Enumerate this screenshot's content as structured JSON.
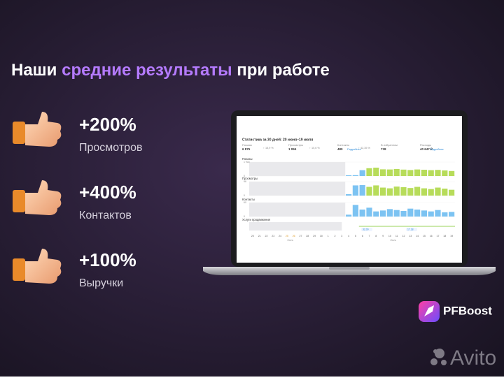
{
  "header": {
    "title_parts": [
      {
        "text": "Наши ",
        "accent": false
      },
      {
        "text": "средние результаты",
        "accent": true
      },
      {
        "text": " при работе",
        "accent": false
      }
    ]
  },
  "stats": [
    {
      "value": "+200%",
      "label": "Просмотров"
    },
    {
      "value": "+400%",
      "label": "Контактов"
    },
    {
      "value": "+100%",
      "label": "Выручки"
    }
  ],
  "screen": {
    "title": "Статистика за 30 дней: 20 июня–19 июля",
    "summary": [
      {
        "label": "Показы",
        "value": "6 875",
        "change": "↑ 15,9 %"
      },
      {
        "label": "Просмотры",
        "value": "1 094",
        "change": "↑ 10,6 %"
      },
      {
        "label": "Контакты",
        "value": "480",
        "change": "↑ 42,35 %",
        "link": "Подробнее"
      },
      {
        "label": "В избранном",
        "value": "738"
      },
      {
        "label": "Расходы",
        "value": "40 647 ₽",
        "link": "Подробнее"
      }
    ],
    "charts": [
      {
        "title": "Показы",
        "ylim": [
          0,
          1000
        ],
        "yticks": [
          {
            "value": 1000,
            "label": "1 тыс"
          },
          0
        ],
        "series": [
          {
            "color": "#7cc3f2",
            "values": [
              null,
              null,
              null,
              null,
              null,
              null,
              null,
              null,
              null,
              null,
              null,
              null,
              null,
              null,
              50,
              60,
              420,
              null,
              null,
              null,
              null,
              null,
              null,
              null,
              null,
              null,
              null,
              null,
              null,
              null
            ]
          },
          {
            "color": "#b7dc5a",
            "values": [
              null,
              null,
              null,
              null,
              null,
              null,
              null,
              null,
              null,
              null,
              null,
              null,
              null,
              null,
              null,
              null,
              null,
              560,
              600,
              480,
              470,
              500,
              460,
              430,
              470,
              450,
              420,
              440,
              400,
              360
            ]
          }
        ]
      },
      {
        "title": "Просмотры",
        "ylim": [
          0,
          96
        ],
        "yticks": [
          96,
          0
        ],
        "series": [
          {
            "color": "#7cc3f2",
            "values": [
              null,
              null,
              null,
              null,
              null,
              null,
              null,
              null,
              null,
              null,
              null,
              null,
              null,
              null,
              10,
              70,
              72,
              null,
              null,
              null,
              null,
              null,
              null,
              null,
              null,
              null,
              null,
              null,
              null,
              null
            ]
          },
          {
            "color": "#b7dc5a",
            "values": [
              null,
              null,
              null,
              null,
              null,
              null,
              null,
              null,
              null,
              null,
              null,
              null,
              null,
              null,
              null,
              null,
              null,
              60,
              70,
              55,
              50,
              62,
              58,
              52,
              60,
              50,
              45,
              55,
              48,
              40
            ]
          }
        ]
      },
      {
        "title": "Контакты",
        "ylim": [
          0,
          60
        ],
        "yticks": [
          60,
          0
        ],
        "series": [
          {
            "color": "#7cc3f2",
            "values": [
              null,
              null,
              null,
              null,
              null,
              null,
              null,
              null,
              null,
              null,
              null,
              null,
              null,
              null,
              8,
              50,
              30,
              38,
              22,
              26,
              32,
              28,
              24,
              34,
              30,
              26,
              22,
              28,
              18,
              20
            ]
          }
        ]
      }
    ],
    "services": {
      "title": "Услуги продвижения",
      "labels": [
        "32.00",
        "17.18"
      ]
    },
    "days": [
      "20",
      "21",
      "22",
      "23",
      "24",
      "25",
      "26",
      "27",
      "28",
      "29",
      "30",
      "1",
      "2",
      "3",
      "4",
      "5",
      "6",
      "7",
      "8",
      "9",
      "10",
      "11",
      "12",
      "13",
      "14",
      "15",
      "16",
      "17",
      "18",
      "19"
    ],
    "months": [
      "Июнь",
      "Июль"
    ]
  },
  "brand": "PFBoost",
  "watermark": "Avito"
}
